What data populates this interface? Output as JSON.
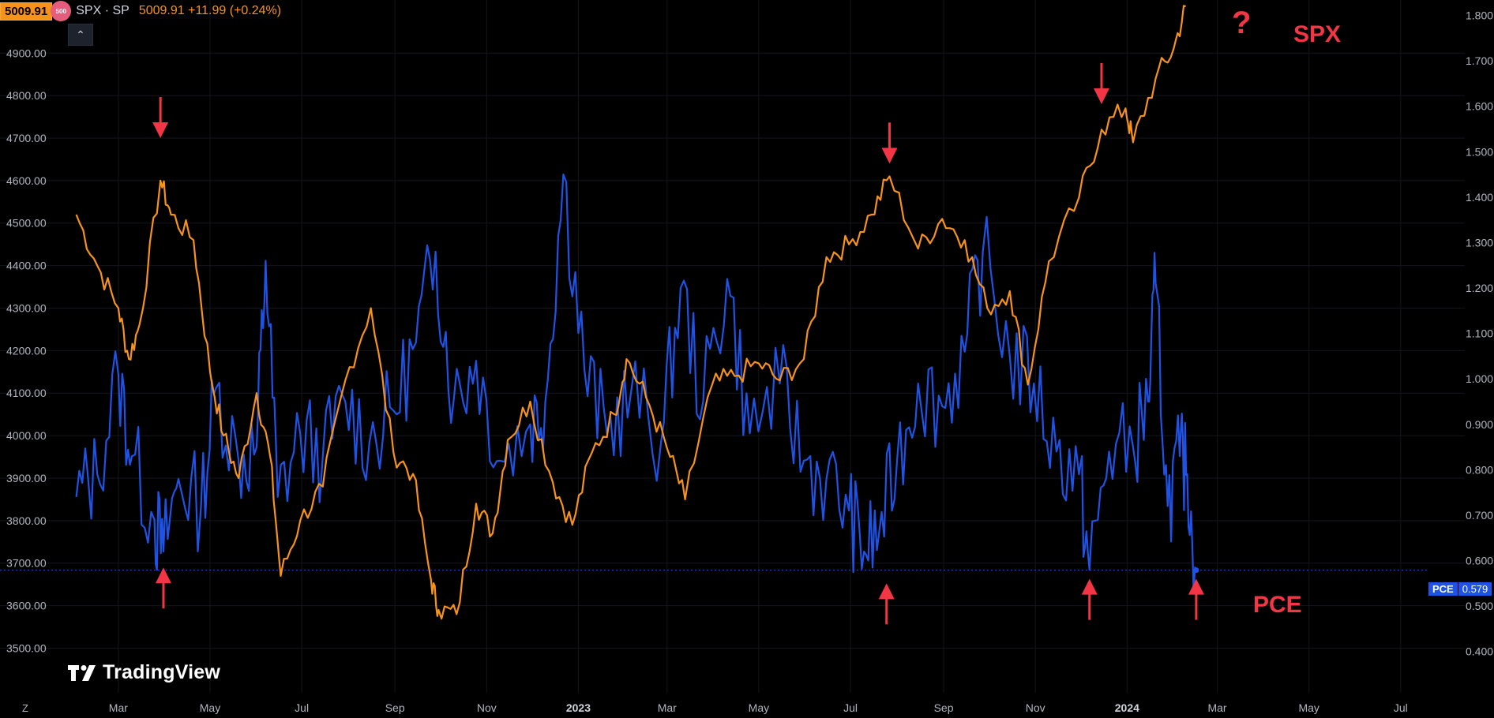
{
  "header": {
    "price_badge": "5009.91",
    "symbol_icon_text": "500",
    "symbol": "SPX · SP",
    "last_value": "5009.91 +11.99 (+0.24%)"
  },
  "brand": "TradingView",
  "timezone_button": "Z",
  "colors": {
    "spx": "#f7931a",
    "pce": "#1e53e5",
    "annotation": "#f23645",
    "background": "#000000"
  },
  "chart_data": {
    "type": "line",
    "left_axis": {
      "ticks": [
        "3500.00",
        "3600.00",
        "3700.00",
        "3800.00",
        "3900.00",
        "4000.00",
        "4100.00",
        "4200.00",
        "4300.00",
        "4400.00",
        "4500.00",
        "4600.00",
        "4700.00",
        "4800.00",
        "4900.00"
      ],
      "range": [
        3460,
        5010
      ]
    },
    "right_axis": {
      "ticks": [
        "0.400",
        "0.500",
        "0.600",
        "0.700",
        "0.800",
        "0.900",
        "1.000",
        "1.100",
        "1.200",
        "1.300",
        "1.400",
        "1.500",
        "1.600",
        "1.700",
        "1.800"
      ],
      "range": [
        0.37,
        1.82
      ]
    },
    "x_axis": {
      "ticks": [
        "Mar",
        "May",
        "Jul",
        "Sep",
        "Nov",
        "2023",
        "Mar",
        "May",
        "Jul",
        "Sep",
        "Nov",
        "2024",
        "Mar",
        "May",
        "Jul"
      ],
      "bold_ticks": [
        "2023",
        "2024"
      ]
    },
    "series": [
      {
        "name": "SPX",
        "axis": "left",
        "points": [
          [
            "2022-02-01",
            4520
          ],
          [
            "2022-02-15",
            4400
          ],
          [
            "2022-03-01",
            4300
          ],
          [
            "2022-03-08",
            4180
          ],
          [
            "2022-03-15",
            4260
          ],
          [
            "2022-03-29",
            4600
          ],
          [
            "2022-04-05",
            4520
          ],
          [
            "2022-04-20",
            4460
          ],
          [
            "2022-05-01",
            4150
          ],
          [
            "2022-05-10",
            4000
          ],
          [
            "2022-05-20",
            3900
          ],
          [
            "2022-06-01",
            4100
          ],
          [
            "2022-06-10",
            3950
          ],
          [
            "2022-06-17",
            3670
          ],
          [
            "2022-06-30",
            3800
          ],
          [
            "2022-07-15",
            3880
          ],
          [
            "2022-07-30",
            4130
          ],
          [
            "2022-08-16",
            4300
          ],
          [
            "2022-08-31",
            3960
          ],
          [
            "2022-09-13",
            3910
          ],
          [
            "2022-09-25",
            3660
          ],
          [
            "2022-09-30",
            3590
          ],
          [
            "2022-10-12",
            3580
          ],
          [
            "2022-10-25",
            3840
          ],
          [
            "2022-11-05",
            3770
          ],
          [
            "2022-11-15",
            3990
          ],
          [
            "2022-11-30",
            4080
          ],
          [
            "2022-12-15",
            3890
          ],
          [
            "2022-12-28",
            3790
          ],
          [
            "2023-01-10",
            3960
          ],
          [
            "2023-01-25",
            4050
          ],
          [
            "2023-02-02",
            4180
          ],
          [
            "2023-02-15",
            4090
          ],
          [
            "2023-03-01",
            3970
          ],
          [
            "2023-03-13",
            3850
          ],
          [
            "2023-03-31",
            4120
          ],
          [
            "2023-04-15",
            4140
          ],
          [
            "2023-05-01",
            4170
          ],
          [
            "2023-05-15",
            4130
          ],
          [
            "2023-05-31",
            4180
          ],
          [
            "2023-06-15",
            4420
          ],
          [
            "2023-06-30",
            4450
          ],
          [
            "2023-07-15",
            4520
          ],
          [
            "2023-07-27",
            4610
          ],
          [
            "2023-08-15",
            4440
          ],
          [
            "2023-08-31",
            4510
          ],
          [
            "2023-09-15",
            4460
          ],
          [
            "2023-09-30",
            4300
          ],
          [
            "2023-10-15",
            4340
          ],
          [
            "2023-10-27",
            4120
          ],
          [
            "2023-11-10",
            4410
          ],
          [
            "2023-11-30",
            4560
          ],
          [
            "2023-12-15",
            4720
          ],
          [
            "2023-12-31",
            4770
          ],
          [
            "2024-01-05",
            4690
          ],
          [
            "2024-01-20",
            4840
          ],
          [
            "2024-02-01",
            4910
          ],
          [
            "2024-02-09",
            5010
          ]
        ]
      },
      {
        "name": "PCE",
        "axis": "right",
        "points": [
          [
            "2022-02-01",
            0.74
          ],
          [
            "2022-02-15",
            0.79
          ],
          [
            "2022-03-01",
            1.01
          ],
          [
            "2022-03-10",
            0.83
          ],
          [
            "2022-03-25",
            0.69
          ],
          [
            "2022-03-31",
            0.62
          ],
          [
            "2022-04-10",
            0.78
          ],
          [
            "2022-04-25",
            0.72
          ],
          [
            "2022-05-05",
            0.98
          ],
          [
            "2022-05-20",
            0.82
          ],
          [
            "2022-06-01",
            0.85
          ],
          [
            "2022-06-07",
            1.26
          ],
          [
            "2022-06-15",
            0.74
          ],
          [
            "2022-06-30",
            0.88
          ],
          [
            "2022-07-15",
            0.83
          ],
          [
            "2022-07-30",
            0.95
          ],
          [
            "2022-08-15",
            0.86
          ],
          [
            "2022-08-31",
            0.93
          ],
          [
            "2022-09-15",
            1.08
          ],
          [
            "2022-09-28",
            1.28
          ],
          [
            "2022-10-10",
            0.95
          ],
          [
            "2022-10-25",
            1.04
          ],
          [
            "2022-11-10",
            0.82
          ],
          [
            "2022-11-30",
            0.9
          ],
          [
            "2022-12-10",
            0.95
          ],
          [
            "2022-12-22",
            1.45
          ],
          [
            "2023-01-05",
            1.02
          ],
          [
            "2023-01-20",
            0.88
          ],
          [
            "2023-02-05",
            0.97
          ],
          [
            "2023-02-25",
            0.86
          ],
          [
            "2023-03-10",
            1.2
          ],
          [
            "2023-03-25",
            0.95
          ],
          [
            "2023-04-10",
            1.22
          ],
          [
            "2023-04-25",
            0.88
          ],
          [
            "2023-05-15",
            0.99
          ],
          [
            "2023-05-31",
            0.82
          ],
          [
            "2023-06-15",
            0.78
          ],
          [
            "2023-06-30",
            0.71
          ],
          [
            "2023-07-10",
            0.62
          ],
          [
            "2023-07-20",
            0.66
          ],
          [
            "2023-08-01",
            0.82
          ],
          [
            "2023-08-15",
            0.99
          ],
          [
            "2023-08-31",
            0.94
          ],
          [
            "2023-09-15",
            1.06
          ],
          [
            "2023-09-27",
            1.28
          ],
          [
            "2023-10-15",
            1.05
          ],
          [
            "2023-10-31",
            0.99
          ],
          [
            "2023-11-15",
            0.84
          ],
          [
            "2023-11-30",
            0.79
          ],
          [
            "2023-12-07",
            0.58
          ],
          [
            "2023-12-20",
            0.84
          ],
          [
            "2024-01-05",
            0.85
          ],
          [
            "2024-01-15",
            0.95
          ],
          [
            "2024-01-20",
            1.21
          ],
          [
            "2024-01-28",
            0.72
          ],
          [
            "2024-02-05",
            0.83
          ],
          [
            "2024-02-10",
            0.79
          ],
          [
            "2024-02-16",
            0.579
          ]
        ]
      }
    ],
    "last_value_label": {
      "series": "PCE",
      "label": "PCE",
      "value": "0.579"
    },
    "annotations": [
      {
        "text": "SPX",
        "color": "#f23645"
      },
      {
        "text": "PCE",
        "color": "#f23645"
      },
      {
        "text": "?",
        "color": "#f23645"
      }
    ],
    "arrows_down": [
      "2022-03-29",
      "2023-07-27",
      "2023-12-15"
    ],
    "arrows_up": [
      "2022-03-31",
      "2023-07-25",
      "2023-12-07",
      "2024-02-16"
    ],
    "grid": true,
    "legend": "top-left"
  }
}
